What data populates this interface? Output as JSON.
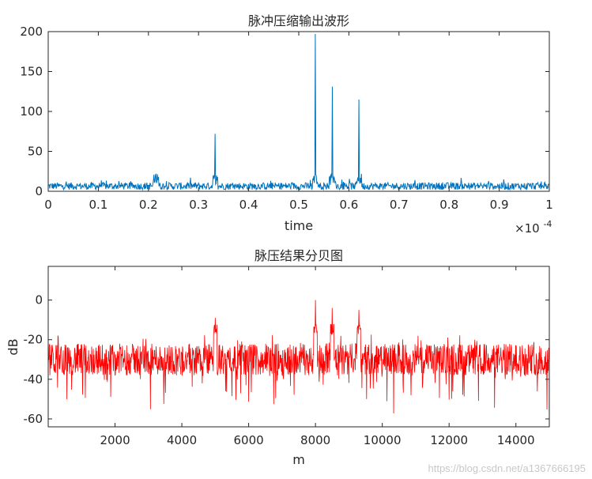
{
  "chart_data": [
    {
      "type": "line",
      "title": "脉冲压缩输出波形",
      "xlabel": "time",
      "ylabel": "",
      "x_exponent_label": "×10",
      "x_exponent_power": "-4",
      "xlim": [
        0,
        1.0
      ],
      "ylim": [
        0,
        200
      ],
      "xticks": [
        "0",
        "0.1",
        "0.2",
        "0.3",
        "0.4",
        "0.5",
        "0.6",
        "0.7",
        "0.8",
        "0.9",
        "1"
      ],
      "yticks": [
        "0",
        "50",
        "100",
        "150",
        "200"
      ],
      "color": "#0072BD",
      "noise_floor": [
        0,
        18
      ],
      "peaks": [
        {
          "x": 0.333,
          "y": 72
        },
        {
          "x": 0.533,
          "y": 197
        },
        {
          "x": 0.567,
          "y": 131
        },
        {
          "x": 0.62,
          "y": 115
        },
        {
          "x": 0.215,
          "y": 22
        }
      ]
    },
    {
      "type": "line",
      "title": "脉压结果分贝图",
      "xlabel": "m",
      "ylabel": "dB",
      "xlim": [
        0,
        15000
      ],
      "ylim": [
        -64,
        17
      ],
      "xticks": [
        "2000",
        "4000",
        "6000",
        "8000",
        "10000",
        "12000",
        "14000"
      ],
      "yticks": [
        "0",
        "-20",
        "-40",
        "-60"
      ],
      "color": "#FF0000",
      "noise_level": [
        -45,
        -20
      ],
      "peaks": [
        {
          "x": 5000,
          "y": -9
        },
        {
          "x": 8000,
          "y": 0
        },
        {
          "x": 8500,
          "y": -4
        },
        {
          "x": 9300,
          "y": -5
        }
      ]
    }
  ],
  "watermark": "https://blog.csdn.net/a1367666195"
}
